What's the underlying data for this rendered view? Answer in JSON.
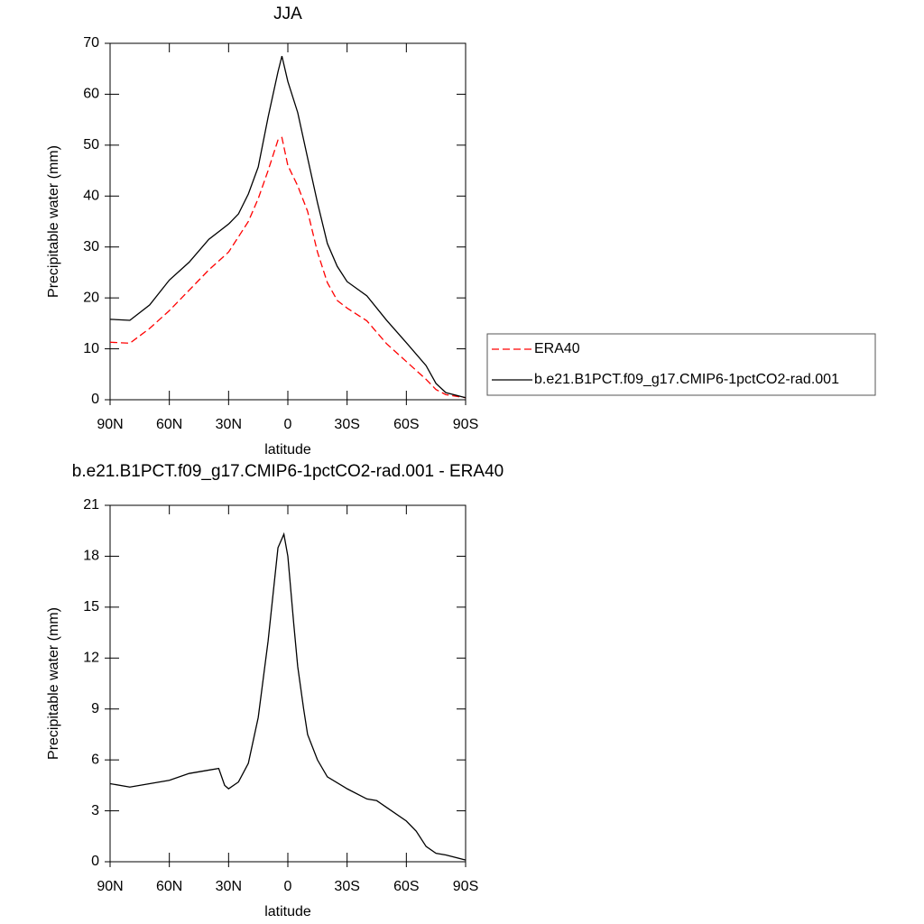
{
  "chart_data": [
    {
      "type": "line",
      "title": "JJA",
      "xlabel": "latitude",
      "ylabel": "Precipitable water (mm)",
      "x": [
        90,
        80,
        70,
        60,
        50,
        40,
        30,
        25,
        20,
        15,
        10,
        5,
        3,
        0,
        -5,
        -10,
        -15,
        -20,
        -25,
        -30,
        -40,
        -50,
        -60,
        -70,
        -75,
        -80,
        -90
      ],
      "series": [
        {
          "name": "ERA40",
          "color": "#ff0000",
          "style": "dashed",
          "values": [
            11.3,
            11.1,
            14,
            17.5,
            21.5,
            25.5,
            29,
            32,
            35,
            39.5,
            45,
            51,
            51.5,
            46,
            42,
            37,
            29,
            23,
            19.5,
            18,
            15.5,
            11,
            7.5,
            4,
            2,
            1,
            0.4
          ]
        },
        {
          "name": "b.e21.B1PCT.f09_g17.CMIP6-1pctCO2-rad.001",
          "color": "#000000",
          "style": "solid",
          "values": [
            15.8,
            15.6,
            18.6,
            23.5,
            27,
            31.5,
            34.5,
            36.5,
            40.4,
            45.7,
            55.5,
            64.4,
            67.5,
            62.5,
            56.4,
            47.5,
            38.7,
            30.7,
            26.2,
            23.2,
            20.4,
            15.6,
            11.2,
            6.7,
            3.2,
            1.4,
            0.4
          ]
        }
      ],
      "xlim": [
        90,
        -90
      ],
      "xticks": [
        {
          "value": 90,
          "label": "90N"
        },
        {
          "value": 60,
          "label": "60N"
        },
        {
          "value": 30,
          "label": "30N"
        },
        0,
        {
          "value": -30,
          "label": "30S"
        },
        {
          "value": -60,
          "label": "60S"
        },
        {
          "value": -90,
          "label": "90S"
        }
      ],
      "ylim": [
        0,
        70
      ],
      "yticks": [
        0,
        10,
        20,
        30,
        40,
        50,
        60,
        70
      ],
      "legend": "right"
    },
    {
      "type": "line",
      "title": "b.e21.B1PCT.f09_g17.CMIP6-1pctCO2-rad.001 - ERA40",
      "xlabel": "latitude",
      "ylabel": "Precipitable water (mm)",
      "x": [
        90,
        80,
        70,
        60,
        50,
        40,
        35,
        32,
        30,
        25,
        20,
        15,
        10,
        5,
        2,
        0,
        -3,
        -5,
        -8,
        -10,
        -15,
        -20,
        -30,
        -40,
        -45,
        -50,
        -60,
        -65,
        -70,
        -75,
        -80,
        -90
      ],
      "values": [
        4.6,
        4.4,
        4.6,
        4.8,
        5.2,
        5.4,
        5.5,
        4.5,
        4.3,
        4.7,
        5.8,
        8.5,
        13,
        18.5,
        19.3,
        18,
        14,
        11.5,
        9,
        7.5,
        6,
        5,
        4.3,
        3.7,
        3.6,
        3.2,
        2.4,
        1.8,
        0.9,
        0.5,
        0.4,
        0.1
      ],
      "color": "#000000",
      "xlim": [
        90,
        -90
      ],
      "xticks": [
        {
          "value": 90,
          "label": "90N"
        },
        {
          "value": 60,
          "label": "60N"
        },
        {
          "value": 30,
          "label": "30N"
        },
        0,
        {
          "value": -30,
          "label": "30S"
        },
        {
          "value": -60,
          "label": "60S"
        },
        {
          "value": -90,
          "label": "90S"
        }
      ],
      "ylim": [
        0,
        21
      ],
      "yticks": [
        0,
        3,
        6,
        9,
        12,
        15,
        18,
        21
      ]
    }
  ]
}
